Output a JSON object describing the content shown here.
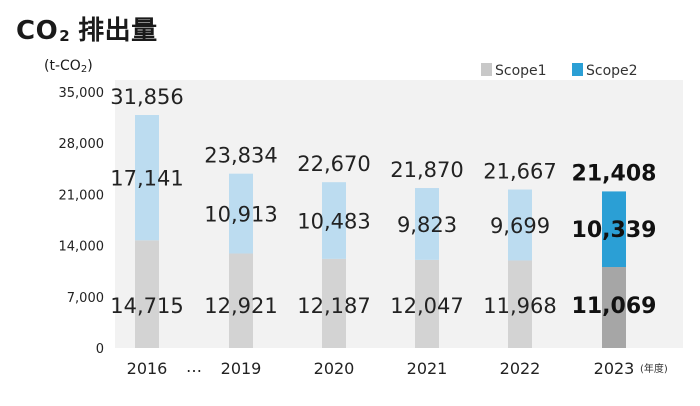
{
  "chart_data": {
    "type": "bar",
    "stacked": true,
    "title_main": "CO",
    "title_sub": "2",
    "title_rest": "排出量",
    "ylabel_main": "(t-CO",
    "ylabel_sub": "2",
    "ylabel_end": ")",
    "x_unit": "(年度)",
    "categories": [
      "2016",
      "2019",
      "2020",
      "2021",
      "2022",
      "2023"
    ],
    "gap_marker": "…",
    "yticks": [
      0,
      7000,
      14000,
      21000,
      28000,
      35000
    ],
    "ylim": [
      0,
      35000
    ],
    "series": [
      {
        "name": "Scope1",
        "values": [
          14715,
          12921,
          12187,
          12047,
          11968,
          11069
        ]
      },
      {
        "name": "Scope2",
        "values": [
          17141,
          10913,
          10483,
          9823,
          9699,
          10339
        ]
      }
    ],
    "totals": [
      31856,
      23834,
      22670,
      21870,
      21667,
      21408
    ],
    "highlight_index": 5,
    "colors": {
      "scope1": "#d3d3d3",
      "scope2": "#bcdcf0",
      "scope1_highlight": "#a6a6a6",
      "scope2_highlight": "#2b9fd5",
      "legend_scope1": "#c8c8c8",
      "legend_scope2": "#2b9fd5",
      "plot_bg": "#f2f2f2"
    },
    "legend_position": "top-right",
    "grid": false
  }
}
